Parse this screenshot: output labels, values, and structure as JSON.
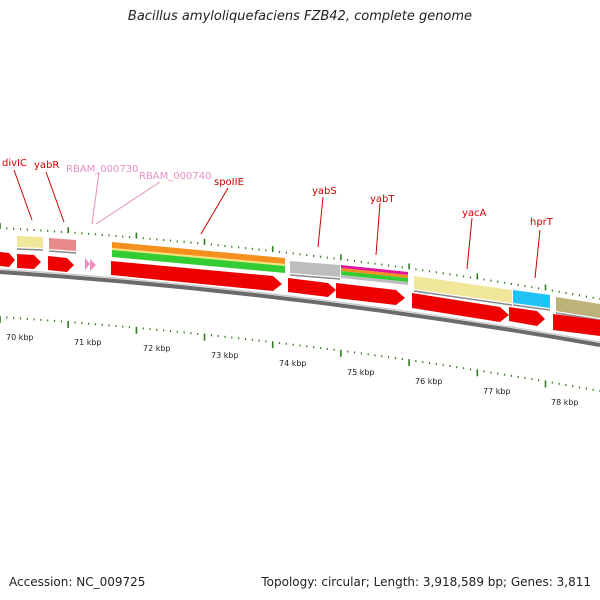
{
  "title": "Bacillus amyloliquefaciens FZB42, complete genome",
  "footer": {
    "accession": "Accession: NC_009725",
    "topology": "Topology: circular; Length: 3,918,589 bp; Genes: 3,811"
  },
  "colors": {
    "gene_label": "#cc0000",
    "pseudo_label": "#e98fbf",
    "cds_arrow": "#ee0000",
    "tick": "#2e7d1e",
    "backbone": "#777777"
  },
  "gene_labels": [
    {
      "name": "divIC",
      "kind": "gene"
    },
    {
      "name": "yabR",
      "kind": "gene"
    },
    {
      "name": "RBAM_000730",
      "kind": "pseudo"
    },
    {
      "name": "RBAM_000740",
      "kind": "pseudo"
    },
    {
      "name": "spoIIE",
      "kind": "gene"
    },
    {
      "name": "yabS",
      "kind": "gene"
    },
    {
      "name": "yabT",
      "kind": "gene"
    },
    {
      "name": "yacA",
      "kind": "gene"
    },
    {
      "name": "hprT",
      "kind": "gene"
    }
  ],
  "scale_labels": [
    "70 kbp",
    "71 kbp",
    "72 kbp",
    "73 kbp",
    "74 kbp",
    "75 kbp",
    "76 kbp",
    "77 kbp",
    "78 kbp"
  ]
}
